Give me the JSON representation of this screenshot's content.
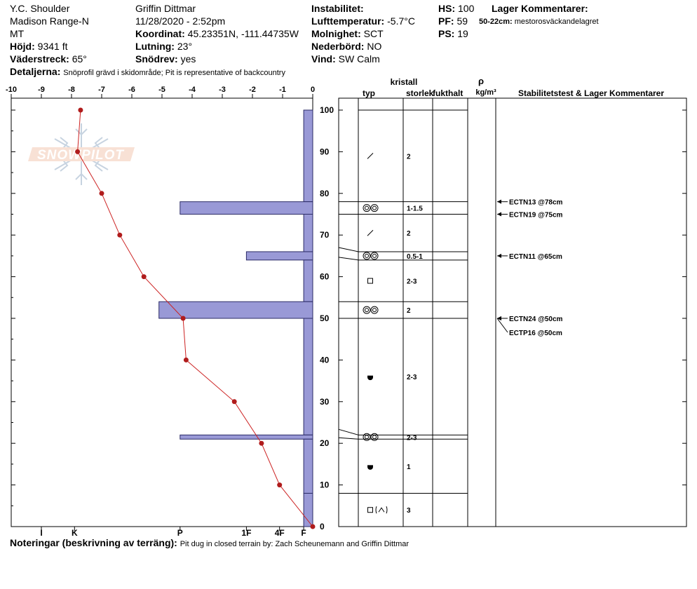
{
  "header": {
    "location": "Y.C. Shoulder",
    "range": "Madison Range-N",
    "state": "MT",
    "elevation_label": "Höjd:",
    "elevation_value": "9341 ft",
    "aspect_label": "Väderstreck:",
    "aspect_value": "65°",
    "observer": "Griffin Dittmar",
    "datetime": "11/28/2020 - 2:52pm",
    "coord_label": "Koordinat:",
    "coord_value": "45.23351N, -111.44735W",
    "slope_label": "Lutning:",
    "slope_value": "23°",
    "wind_loading_label": "Snödrev:",
    "wind_loading_value": "yes",
    "instability_label": "Instabilitet:",
    "air_temp_label": "Lufttemperatur:",
    "air_temp_value": "-5.7°C",
    "sky_label": "Molnighet:",
    "sky_value": "SCT",
    "precip_label": "Nederbörd:",
    "precip_value": "NO",
    "wind_label": "Vind:",
    "wind_value": "SW Calm",
    "hs_label": "HS:",
    "hs_value": "100",
    "pf_label": "PF:",
    "pf_value": "59",
    "ps_label": "PS:",
    "ps_value": "19",
    "layer_comments_label": "Lager Kommentarer:",
    "layer_comment_range": "50-22cm:",
    "layer_comment_text": "mestorosväckandelagret",
    "details_label": "Detaljerna:",
    "details_text": "Snöprofil grävd i skidområde;  Pit is representative of backcountry",
    "notes_label": "Noteringar (beskrivning av terräng):",
    "notes_text": "Pit dug in closed terrain by: Zach Scheunemann and Griffin Dittmar"
  },
  "logo_text": "SNOWPILOT",
  "colors": {
    "hardness_fill": "#9999d6",
    "hardness_stroke": "#2b2b66",
    "temp_line": "#cc2222",
    "temp_point": "#b01c1c"
  },
  "chart_data": [
    {
      "type": "line",
      "name": "temperature-profile",
      "temp_axis_ticks": [
        "-10",
        "-9",
        "-8",
        "-7",
        "-6",
        "-5",
        "-4",
        "-3",
        "-2",
        "-1",
        "0"
      ],
      "xlim": [
        -10,
        0
      ],
      "ylim": [
        0,
        100
      ],
      "depth_ticks": [
        "100",
        "90",
        "80",
        "70",
        "60",
        "50",
        "40",
        "30",
        "20",
        "10",
        "0"
      ],
      "points": [
        {
          "depth": 100,
          "temp": -7.7
        },
        {
          "depth": 90,
          "temp": -7.8
        },
        {
          "depth": 80,
          "temp": -7.0
        },
        {
          "depth": 70,
          "temp": -6.4
        },
        {
          "depth": 60,
          "temp": -5.6
        },
        {
          "depth": 50,
          "temp": -4.3
        },
        {
          "depth": 40,
          "temp": -4.2
        },
        {
          "depth": 30,
          "temp": -2.6
        },
        {
          "depth": 20,
          "temp": -1.7
        },
        {
          "depth": 10,
          "temp": -1.1
        },
        {
          "depth": 0,
          "temp": 0.0
        }
      ]
    },
    {
      "type": "bar",
      "name": "hand-hardness-profile",
      "hardness_ticks": [
        "I",
        "K",
        "P",
        "1F",
        "4F",
        "F"
      ],
      "hardness_tick_values": [
        9,
        7.9,
        4.4,
        2.2,
        1.1,
        0.3
      ],
      "layers": [
        {
          "top": 100,
          "bottom": 78,
          "hardness": 0.3
        },
        {
          "top": 78,
          "bottom": 75,
          "hardness": 4.4
        },
        {
          "top": 75,
          "bottom": 66,
          "hardness": 0.3
        },
        {
          "top": 66,
          "bottom": 64,
          "hardness": 2.2
        },
        {
          "top": 64,
          "bottom": 54,
          "hardness": 0.3
        },
        {
          "top": 54,
          "bottom": 50,
          "hardness": 5.1
        },
        {
          "top": 50,
          "bottom": 22,
          "hardness": 0.3
        },
        {
          "top": 22,
          "bottom": 21,
          "hardness": 4.4
        },
        {
          "top": 21,
          "bottom": 8,
          "hardness": 0.3
        },
        {
          "top": 8,
          "bottom": 0,
          "hardness": 0.3
        }
      ]
    }
  ],
  "table": {
    "crystal_label": "kristall",
    "type_label": "typ",
    "size_label": "storlek",
    "moisture_label": "fukthalt",
    "density_symbol": "ρ",
    "density_unit": "kg/m³",
    "stability_label": "Stabilitetstest & Lager Kommentarer",
    "layers": [
      {
        "top": 100,
        "bottom": 78,
        "grain": "decomposing",
        "size": "2"
      },
      {
        "top": 78,
        "bottom": 75,
        "grain": "surface-hoar",
        "size": "1-1.5"
      },
      {
        "top": 75,
        "bottom": 66,
        "grain": "decomposing",
        "size": "2"
      },
      {
        "top": 66,
        "bottom": 64,
        "grain": "surface-hoar",
        "size": "0.5-1"
      },
      {
        "top": 64,
        "bottom": 54,
        "grain": "faceted",
        "size": "2-3"
      },
      {
        "top": 54,
        "bottom": 50,
        "grain": "surface-hoar",
        "size": "2"
      },
      {
        "top": 50,
        "bottom": 22,
        "grain": "depth-hoar",
        "size": "2-3"
      },
      {
        "top": 22,
        "bottom": 21,
        "grain": "surface-hoar",
        "size": "2-3"
      },
      {
        "top": 21,
        "bottom": 8,
        "grain": "depth-hoar",
        "size": "1"
      },
      {
        "top": 8,
        "bottom": 0,
        "grain": "faceted-mixed",
        "size": "3"
      }
    ],
    "tests": [
      {
        "label": "ECTN13 @78cm",
        "depth": 78
      },
      {
        "label": "ECTN19 @75cm",
        "depth": 75
      },
      {
        "label": "ECTN11 @65cm",
        "depth": 65
      },
      {
        "label": "ECTN24 @50cm",
        "depth": 50
      },
      {
        "label": "ECTP16 @50cm",
        "depth": 50
      }
    ]
  }
}
